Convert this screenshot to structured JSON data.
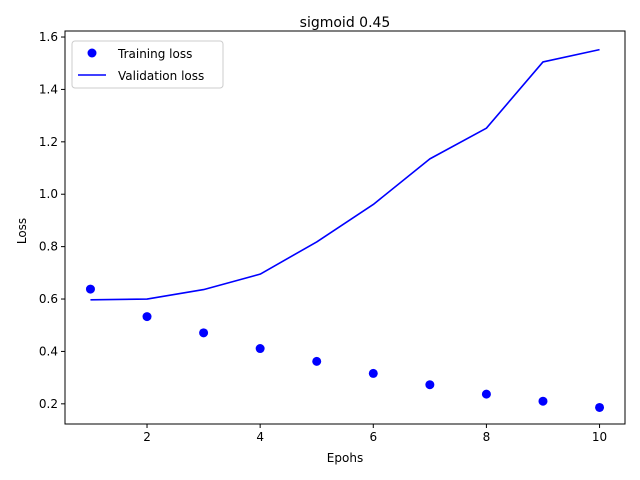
{
  "chart_data": {
    "type": "line",
    "title": "sigmoid 0.45",
    "xlabel": "Epohs",
    "ylabel": "Loss",
    "xlim": [
      0.55,
      10.45
    ],
    "ylim": [
      0.123,
      1.623
    ],
    "x_ticks": [
      2,
      4,
      6,
      8,
      10
    ],
    "y_ticks": [
      0.2,
      0.4,
      0.6,
      0.8,
      1.0,
      1.2,
      1.4,
      1.6
    ],
    "x_tick_labels": [
      "2",
      "4",
      "6",
      "8",
      "10"
    ],
    "y_tick_labels": [
      "0.2",
      "0.4",
      "0.6",
      "0.8",
      "1.0",
      "1.2",
      "1.4",
      "1.6"
    ],
    "grid": false,
    "legend_position": "top-left",
    "x": [
      1,
      2,
      3,
      4,
      5,
      6,
      7,
      8,
      9,
      10
    ],
    "series": [
      {
        "name": "Training loss",
        "style": "markers",
        "color": "#0000ff",
        "values": [
          0.638,
          0.533,
          0.471,
          0.411,
          0.362,
          0.316,
          0.273,
          0.237,
          0.21,
          0.186
        ]
      },
      {
        "name": "Validation loss",
        "style": "line",
        "color": "#0000ff",
        "values": [
          0.597,
          0.6,
          0.636,
          0.695,
          0.818,
          0.961,
          1.135,
          1.252,
          1.505,
          1.552
        ]
      }
    ]
  }
}
